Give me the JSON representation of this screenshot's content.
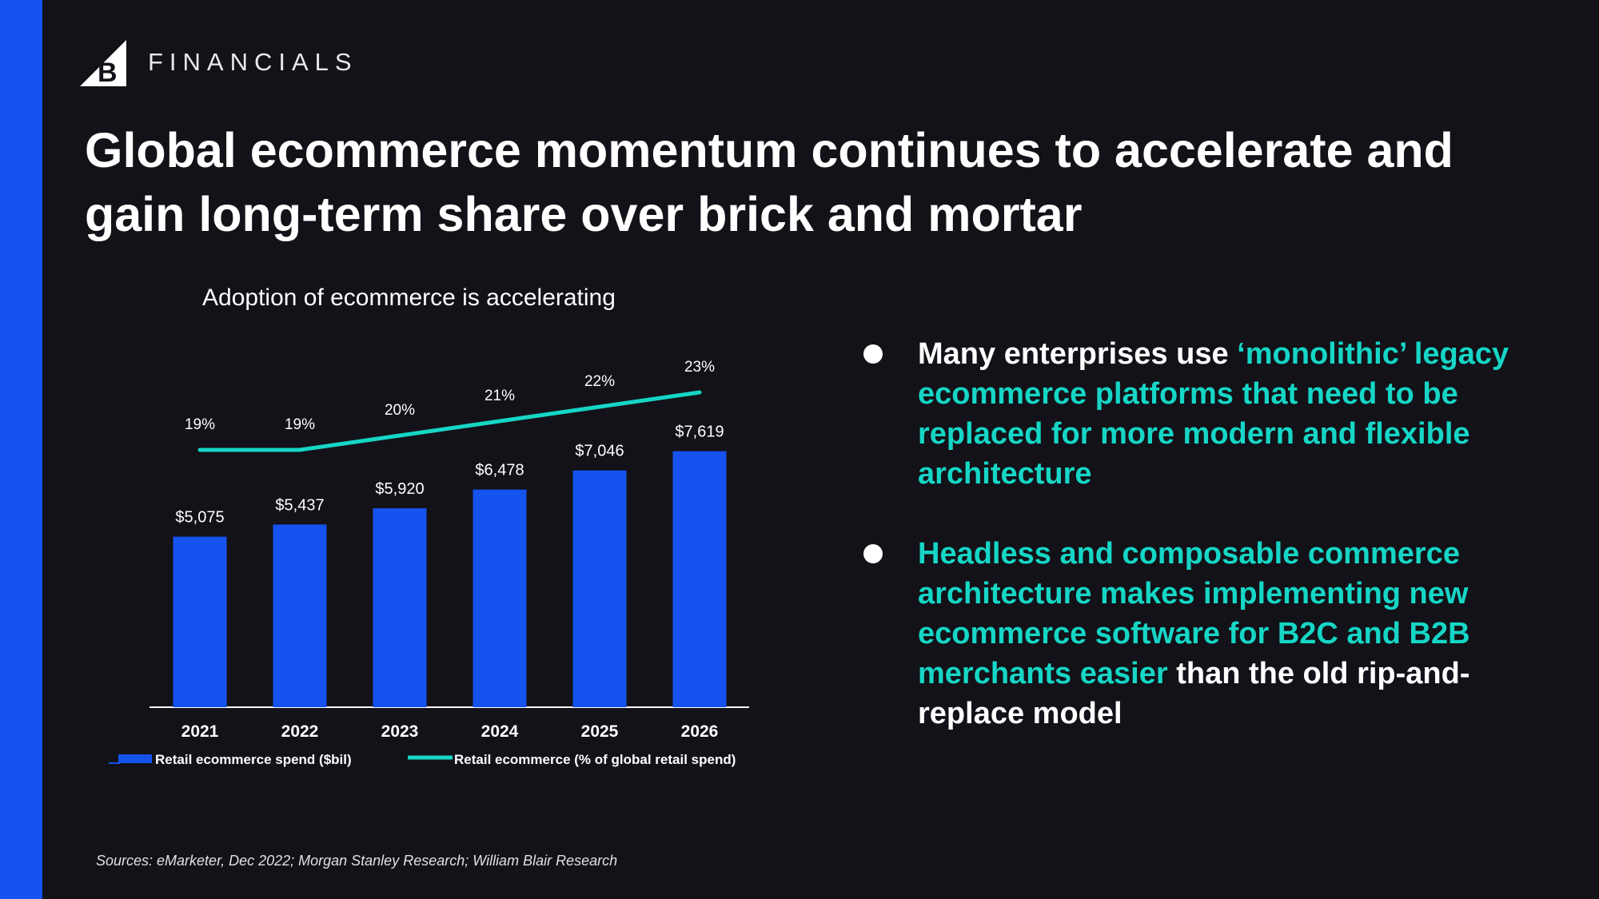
{
  "brand": {
    "name": "FINANCIALS"
  },
  "headline": {
    "line1": "Global ecommerce momentum continues to accelerate and",
    "line2": "gain long-term share over brick and mortar"
  },
  "colors": {
    "accent_blue": "#1652f0",
    "teal": "#16d6c6",
    "background": "#121218"
  },
  "chart_data": {
    "type": "bar",
    "title": "Adoption of ecommerce is accelerating",
    "categories": [
      "2021",
      "2022",
      "2023",
      "2024",
      "2025",
      "2026"
    ],
    "series": [
      {
        "name": "Retail ecommerce spend ($bil)",
        "type": "bar",
        "values": [
          5075,
          5437,
          5920,
          6478,
          7046,
          7619
        ],
        "labels": [
          "$5,075",
          "$5,437",
          "$5,920",
          "$6,478",
          "$7,046",
          "$7,619"
        ],
        "color": "#1652f0"
      },
      {
        "name": "Retail ecommerce (% of global retail spend)",
        "type": "line",
        "values": [
          19,
          19,
          20,
          21,
          22,
          23
        ],
        "labels": [
          "19%",
          "19%",
          "20%",
          "21%",
          "22%",
          "23%"
        ],
        "color": "#16d6c6"
      }
    ],
    "legend_position": "bottom"
  },
  "bullets": [
    {
      "segments": [
        {
          "text": "Many enterprises use ",
          "style": "white"
        },
        {
          "text": "‘monolithic’ legacy ecommerce platforms that need to be replaced for more modern and flexible architecture",
          "style": "teal"
        }
      ]
    },
    {
      "segments": [
        {
          "text": "Headless and composable commerce architecture makes implementing new ecommerce software for B2C and B2B merchants easier",
          "style": "teal"
        },
        {
          "text": " than the old rip-and-replace model",
          "style": "white"
        }
      ]
    }
  ],
  "sources": "Sources: eMarketer, Dec 2022; Morgan Stanley Research; William Blair Research"
}
